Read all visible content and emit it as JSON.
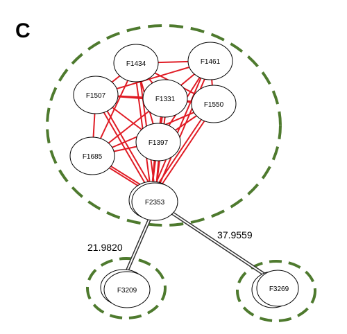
{
  "panel_label": "C",
  "colors": {
    "cluster_outline": "#4e7a2e",
    "correlation_edge": "#e01b24",
    "distance_edge": "#333333",
    "node_stroke": "#000000",
    "node_fill": "#ffffff"
  },
  "nodes": {
    "F1434": "F1434",
    "F1461": "F1461",
    "F1507": "F1507",
    "F1331": "F1331",
    "F1550": "F1550",
    "F1397": "F1397",
    "F1685": "F1685",
    "F2353": "F2353",
    "F3209": "F3209",
    "F3269": "F3269"
  },
  "edge_labels": {
    "F2353_F3209": "21.9820",
    "F2353_F3269": "37.9559"
  }
}
